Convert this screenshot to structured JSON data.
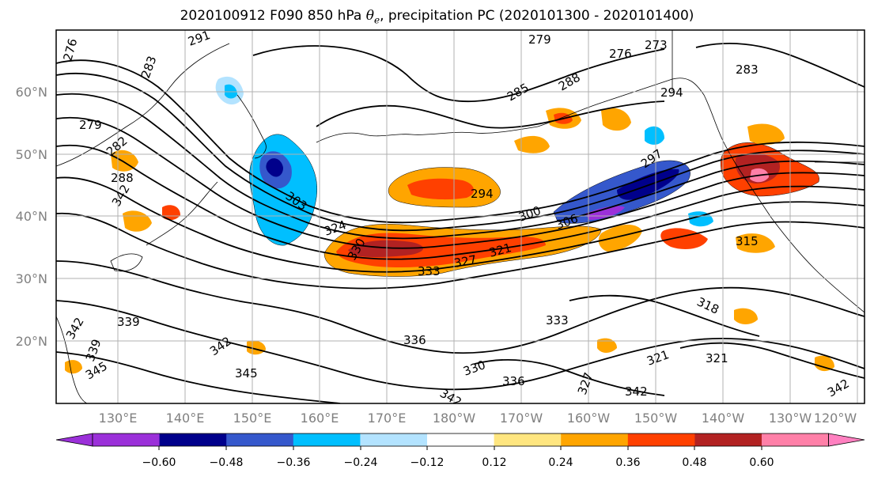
{
  "title": {
    "prefix": "2020100912 F090 850 hPa ",
    "theta_symbol": "θ",
    "theta_sub": "e",
    "suffix": ", precipitation PC (2020101300 - 2020101400)"
  },
  "map": {
    "lat_ticks": [
      "60°N",
      "50°N",
      "40°N",
      "30°N",
      "20°N"
    ],
    "lon_ticks": [
      "130°E",
      "140°E",
      "150°E",
      "160°E",
      "170°E",
      "180°W",
      "170°W",
      "160°W",
      "150°W",
      "140°W",
      "130°W",
      "120°W"
    ],
    "contour_labels": [
      "276",
      "279",
      "282",
      "288",
      "291",
      "283",
      "294",
      "279",
      "276",
      "273",
      "283",
      "288",
      "285",
      "297",
      "294",
      "300",
      "306",
      "303",
      "315",
      "318",
      "321",
      "324",
      "327",
      "330",
      "333",
      "336",
      "339",
      "342",
      "345",
      "342",
      "339",
      "342",
      "345",
      "330",
      "336",
      "342",
      "333",
      "321",
      "342",
      "342",
      "327"
    ]
  },
  "colorbar": {
    "ticks": [
      "−0.60",
      "−0.48",
      "−0.36",
      "−0.24",
      "−0.12",
      "0.12",
      "0.24",
      "0.36",
      "0.48",
      "0.60"
    ],
    "colors": [
      "#9b30d9",
      "#00008b",
      "#3558cc",
      "#00bfff",
      "#b3e3ff",
      "#ffffff",
      "#ffe680",
      "#ffa500",
      "#ff4000",
      "#b22222",
      "#ff80a8",
      "#ff80c0"
    ]
  }
}
